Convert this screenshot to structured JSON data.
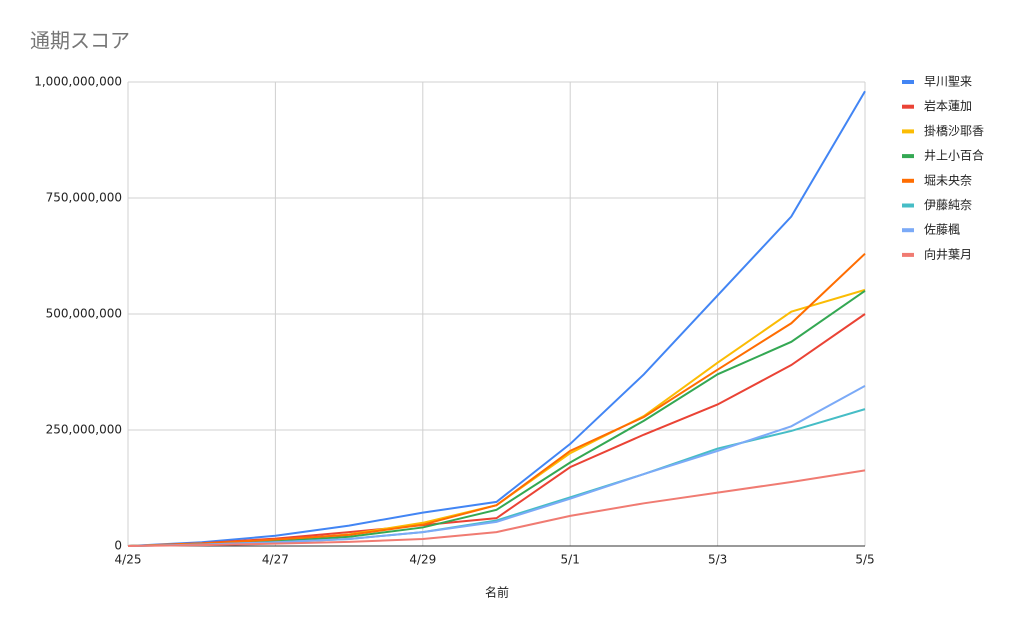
{
  "chart_data": {
    "type": "line",
    "title": "通期スコア",
    "x_label": "名前",
    "categories": [
      "4/25",
      null,
      "4/27",
      null,
      "4/29",
      null,
      "5/1",
      null,
      "5/3",
      null,
      "5/5"
    ],
    "ylim": [
      0,
      1000000000
    ],
    "yticks": [
      0,
      {
        "value": 250000000,
        "label": "250,000,000"
      },
      {
        "value": 500000000,
        "label": "500,000,000"
      },
      {
        "value": 750000000,
        "label": "750,000,000"
      },
      {
        "value": 1000000000,
        "label": "1,000,000,000"
      }
    ],
    "grid": true,
    "legend": "right",
    "series": [
      {
        "name": "早川聖来",
        "color": "#4285f4",
        "values": [
          0,
          8000000,
          22000000,
          44000000,
          72000000,
          95000000,
          220000000,
          370000000,
          540000000,
          710000000,
          980000000
        ]
      },
      {
        "name": "岩本蓮加",
        "color": "#ea4335",
        "values": [
          0,
          6000000,
          16000000,
          30000000,
          45000000,
          60000000,
          170000000,
          240000000,
          305000000,
          390000000,
          500000000
        ]
      },
      {
        "name": "掛橋沙耶香",
        "color": "#fbbc04",
        "values": [
          0,
          5000000,
          12000000,
          25000000,
          50000000,
          88000000,
          200000000,
          280000000,
          395000000,
          505000000,
          552000000
        ]
      },
      {
        "name": "井上小百合",
        "color": "#34a853",
        "values": [
          0,
          4000000,
          10000000,
          20000000,
          40000000,
          78000000,
          180000000,
          270000000,
          370000000,
          440000000,
          550000000
        ]
      },
      {
        "name": "堀未央奈",
        "color": "#ff6d01",
        "values": [
          0,
          5000000,
          14000000,
          24000000,
          46000000,
          88000000,
          205000000,
          278000000,
          380000000,
          480000000,
          630000000
        ]
      },
      {
        "name": "伊藤純奈",
        "color": "#46bdc6",
        "values": [
          0,
          3000000,
          8000000,
          15000000,
          30000000,
          55000000,
          105000000,
          155000000,
          210000000,
          248000000,
          295000000
        ]
      },
      {
        "name": "佐藤楓",
        "color": "#7baaf7",
        "values": [
          0,
          3000000,
          8000000,
          15000000,
          30000000,
          52000000,
          102000000,
          155000000,
          205000000,
          258000000,
          345000000
        ]
      },
      {
        "name": "向井葉月",
        "color": "#f07b72",
        "values": [
          0,
          2000000,
          5000000,
          9000000,
          15000000,
          30000000,
          65000000,
          92000000,
          115000000,
          138000000,
          163000000
        ]
      }
    ]
  }
}
